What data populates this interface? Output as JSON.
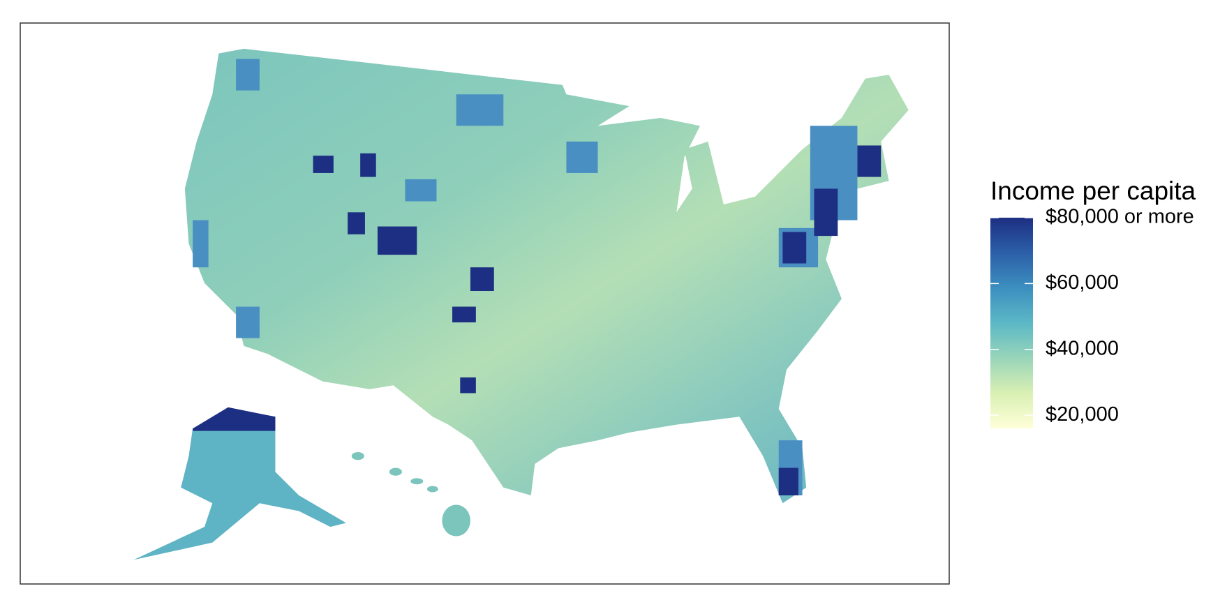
{
  "legend": {
    "title": "Income per capita",
    "ticks": [
      {
        "value": 20000,
        "label": "$20,000"
      },
      {
        "value": 40000,
        "label": "$40,000"
      },
      {
        "value": 60000,
        "label": "$60,000"
      },
      {
        "value": 80000,
        "label": "$80,000 or more"
      }
    ],
    "range": [
      16000,
      80000
    ],
    "colors": [
      "#ffffd9",
      "#d9f0b3",
      "#99d5b9",
      "#5bb8c6",
      "#3c8fc0",
      "#2c5fa8",
      "#1d2f82"
    ]
  }
}
